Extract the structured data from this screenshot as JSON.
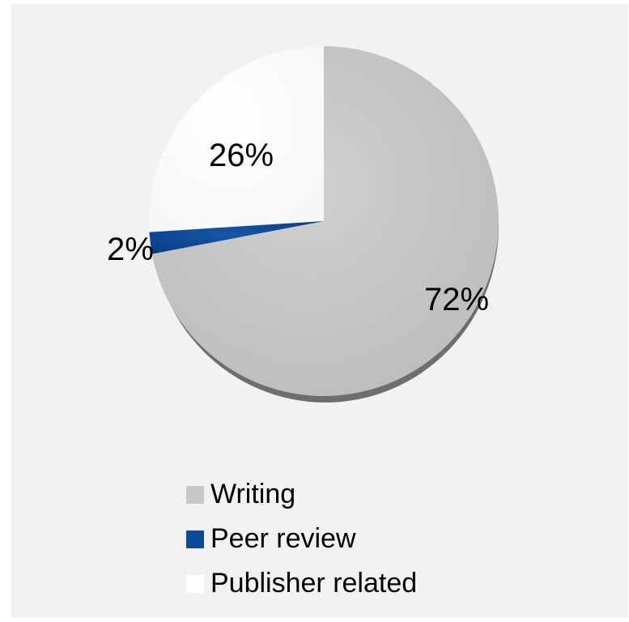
{
  "chart_data": {
    "type": "pie",
    "categories": [
      "Writing",
      "Peer review",
      "Publisher related"
    ],
    "values": [
      72,
      2,
      26
    ],
    "data_labels": [
      "72%",
      "2%",
      "26%"
    ],
    "colors": [
      "#c8c8c8",
      "#0b4a98",
      "#ffffff"
    ],
    "start_angle": "12 o'clock",
    "direction": "clockwise",
    "legend_position": "bottom"
  }
}
